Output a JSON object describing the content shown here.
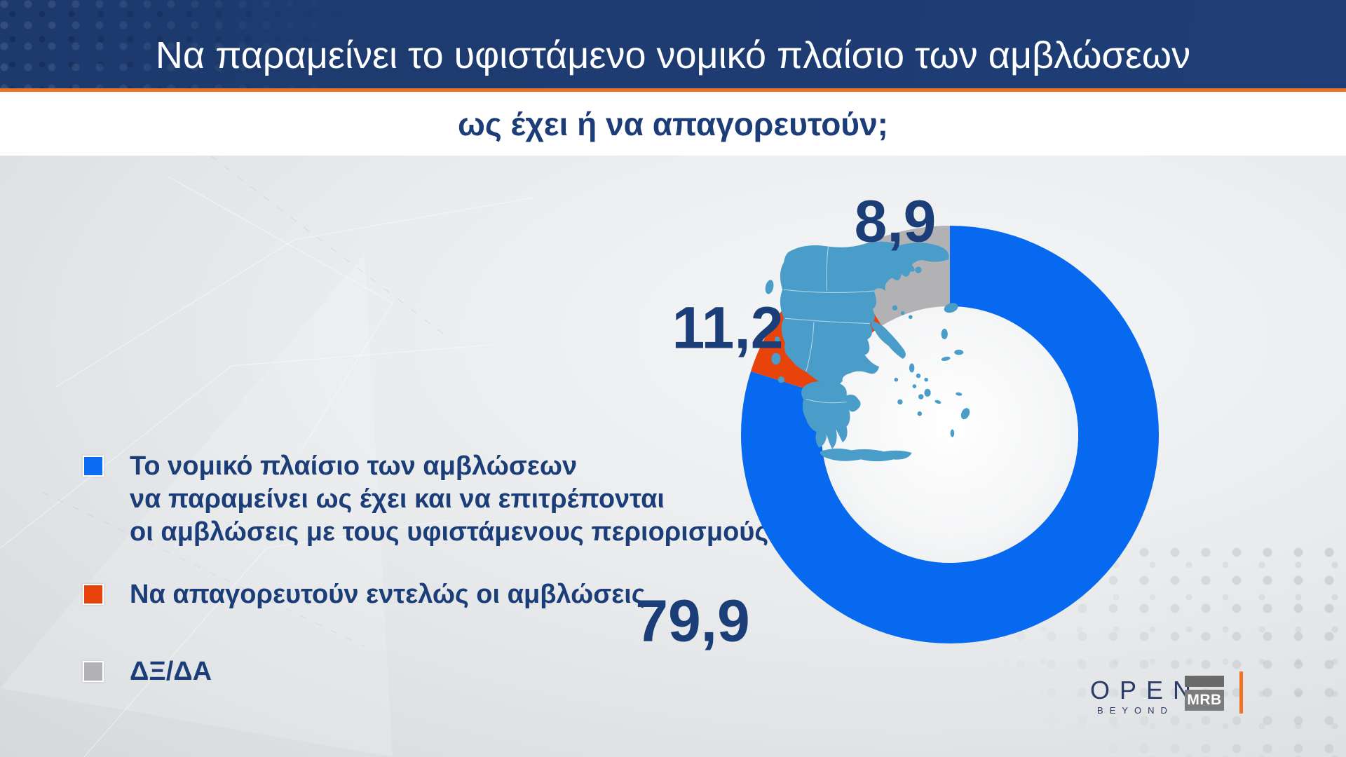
{
  "header": {
    "title": "Να παραμείνει το υφιστάμενο νομικό πλαίσιο των αμβλώσεων",
    "subtitle": "ως έχει ή να απαγορευτούν;",
    "bg_color": "#1e3c72",
    "accent_color": "#ee7326"
  },
  "chart_data": {
    "type": "pie",
    "donut": true,
    "title": "Να παραμείνει το υφιστάμενο νομικό πλαίσιο των αμβλώσεων ως έχει ή να απαγορευτούν;",
    "unit": "percent",
    "start_angle_deg": 0,
    "direction": "clockwise",
    "legend_position": "left",
    "center_graphic": "map-of-greece",
    "center_graphic_color": "#4a9dc9",
    "slices": [
      {
        "label": "Το νομικό πλαίσιο των αμβλώσεων να παραμείνει ως έχει και να επιτρέπονται οι αμβλώσεις με τους υφιστάμενους περιορισμούς",
        "value": 79.9,
        "display_value": "79,9",
        "color": "#0769ef"
      },
      {
        "label": "Να απαγορευτούν εντελώς οι αμβλώσεις",
        "value": 11.2,
        "display_value": "11,2",
        "color": "#e8430b"
      },
      {
        "label": "ΔΞ/ΔΑ",
        "value": 8.9,
        "display_value": "8,9",
        "color": "#b2b2b4"
      }
    ]
  },
  "legend": {
    "items": [
      {
        "color": "#0b6bf2",
        "lines": [
          "Το νομικό πλαίσιο των αμβλώσεων",
          "να παραμείνει ως έχει και να επιτρέπονται",
          "οι αμβλώσεις με τους υφιστάμενους περιορισμούς"
        ]
      },
      {
        "color": "#e8430b",
        "lines": [
          "Να απαγορευτούν εντελώς οι αμβλώσεις"
        ]
      },
      {
        "color": "#b2b2b4",
        "lines": [
          "ΔΞ/ΔΑ"
        ]
      }
    ]
  },
  "footer": {
    "open_logo": {
      "text": "OPEN",
      "subtext": "BEYOND"
    },
    "mrb_logo": {
      "text": "MRB"
    }
  }
}
